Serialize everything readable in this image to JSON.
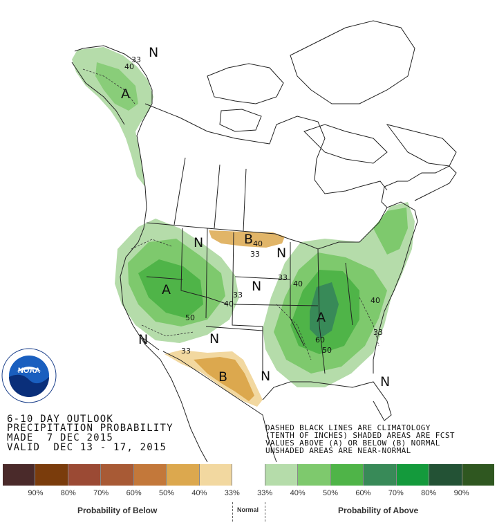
{
  "title_lines": [
    "6-10 DAY OUTLOOK",
    "PRECIPITATION PROBABILITY",
    "MADE  7 DEC 2015",
    "VALID  DEC 13 - 17, 2015"
  ],
  "note_lines": [
    "DASHED BLACK LINES ARE CLIMATOLOGY",
    "(TENTH OF INCHES) SHADED AREAS ARE FCST",
    "VALUES ABOVE (A) OR BELOW (B) NORMAL",
    "UNSHADED AREAS ARE NEAR-NORMAL"
  ],
  "logo": {
    "text": "NOAA",
    "ring_text": "NATIONAL OCEANIC AND ATMOSPHERIC ADMINISTRATION · U.S. DEPARTMENT OF COMMERCE"
  },
  "map_labels": {
    "n_alaska": "N",
    "a_alaska": "A",
    "c33_alaska": "33",
    "c40_alaska": "40",
    "a_west": "A",
    "c50_west": "50",
    "c40_west": "40",
    "c33_west": "33",
    "n_nw": "N",
    "n_sw": "N",
    "n_az": "N",
    "n_plains": "N",
    "n_tx": "N",
    "n_se": "N",
    "n_ne": "N",
    "b_north": "B",
    "c40_north": "40",
    "c33_north": "33",
    "b_south": "B",
    "c33_south": "33",
    "a_east": "A",
    "c60_east": "60",
    "c50_east": "50",
    "c40_east": "40",
    "c33_east": "33",
    "c40_ne": "40",
    "c33_se": "33"
  },
  "legend": {
    "colors": [
      "#4a2a2a",
      "#7a3c0c",
      "#9b4a34",
      "#a85a35",
      "#c3783a",
      "#dca84e",
      "#f2d8a0",
      "#ffffff",
      "#b5dcaa",
      "#7ec96d",
      "#4fb448",
      "#388a58",
      "#149a3c",
      "#235235",
      "#2f5720"
    ],
    "ticks": [
      "90%",
      "80%",
      "70%",
      "60%",
      "50%",
      "40%",
      "33%",
      "33%",
      "40%",
      "50%",
      "60%",
      "70%",
      "80%",
      "90%"
    ],
    "below_label": "Probability of Below",
    "normal_label": "Normal",
    "above_label": "Probability of Above"
  }
}
